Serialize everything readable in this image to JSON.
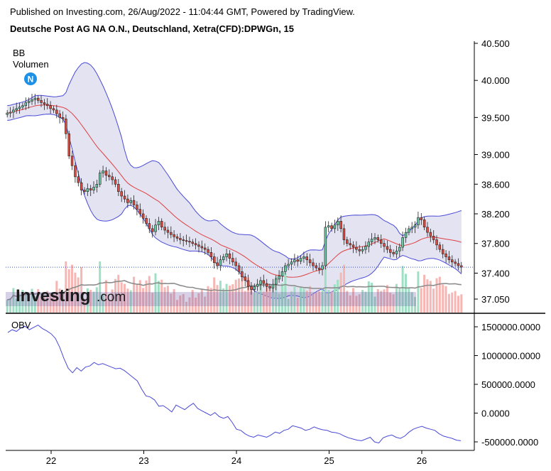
{
  "header": {
    "published": "Published on Investing.com, 26/Aug/2022 - 11:04:44 GMT, Powered by TradingView.",
    "title": "Deutsche Post AG NA O.N., Deutschland, Xetra(CFD):DPWGn, 15"
  },
  "legend": {
    "indicator_bb": "BB",
    "indicator_volume": "Volumen",
    "news_badge": "N",
    "obv_label": "OBV"
  },
  "watermark": {
    "brand": "Investing",
    "suffix": ".com"
  },
  "colors": {
    "bull": "#67c9a0",
    "bear": "#e04a3f",
    "bb_band": "#4a4ad8",
    "bb_fill": "#dcdcef",
    "bb_mid": "#e04040",
    "obv_line": "#4a4ad8",
    "vol_bull": "#9fe0c4",
    "vol_bear": "#f6b7b4",
    "vol_ma": "#8c8c8c",
    "last_price_line": "#3355cc",
    "news_badge": "#1e90e6"
  },
  "chart_data": [
    {
      "type": "candlestick",
      "name": "price",
      "title": "Deutsche Post AG NA O.N., Deutschland, Xetra(CFD):DPWGn, 15",
      "x_ticks": [
        "22",
        "23",
        "24",
        "25",
        "26"
      ],
      "y_ticks": [
        "40.500",
        "40.000",
        "39.500",
        "39.000",
        "38.600",
        "38.200",
        "37.800",
        "37.400",
        "37.050"
      ],
      "ylim": [
        36.9,
        40.55
      ],
      "last_price": 37.48,
      "close": [
        39.56,
        39.57,
        39.6,
        39.62,
        39.64,
        39.66,
        39.7,
        39.72,
        39.74,
        39.76,
        39.73,
        39.7,
        39.68,
        39.66,
        39.62,
        39.6,
        39.55,
        39.5,
        39.48,
        39.28,
        38.98,
        38.85,
        38.7,
        38.62,
        38.52,
        38.5,
        38.54,
        38.52,
        38.56,
        38.6,
        38.75,
        38.78,
        38.72,
        38.7,
        38.66,
        38.6,
        38.5,
        38.44,
        38.4,
        38.35,
        38.38,
        38.32,
        38.26,
        38.2,
        38.14,
        38.07,
        38.0,
        37.96,
        38.05,
        38.1,
        38.02,
        37.98,
        37.95,
        37.92,
        37.89,
        37.87,
        37.85,
        37.84,
        37.83,
        37.82,
        37.8,
        37.78,
        37.76,
        37.74,
        37.72,
        37.68,
        37.62,
        37.54,
        37.5,
        37.58,
        37.62,
        37.66,
        37.6,
        37.55,
        37.5,
        37.42,
        37.35,
        37.3,
        37.22,
        37.18,
        37.22,
        37.25,
        37.3,
        37.26,
        37.22,
        37.2,
        37.25,
        37.32,
        37.36,
        37.42,
        37.5,
        37.52,
        37.55,
        37.58,
        37.56,
        37.6,
        37.62,
        37.58,
        37.54,
        37.5,
        37.47,
        37.45,
        37.5,
        38.02,
        38.04,
        38.0,
        38.05,
        38.1,
        38.0,
        37.85,
        37.8,
        37.78,
        37.75,
        37.72,
        37.7,
        37.72,
        37.76,
        37.82,
        37.86,
        37.88,
        37.85,
        37.8,
        37.76,
        37.72,
        37.68,
        37.66,
        37.7,
        37.75,
        37.88,
        37.95,
        38.0,
        38.02,
        38.05,
        38.15,
        38.12,
        38.02,
        37.95,
        37.9,
        37.85,
        37.78,
        37.72,
        37.66,
        37.62,
        37.58,
        37.55,
        37.53,
        37.5,
        37.48
      ]
    },
    {
      "type": "line",
      "name": "OBV",
      "title": "OBV",
      "x_ticks": [
        "22",
        "23",
        "24",
        "25",
        "26"
      ],
      "y_ticks": [
        "1500000.0000",
        "1000000.0000",
        "500000.0000",
        "0.0000",
        "-500000.0000"
      ],
      "ylim": [
        -600000,
        1620000
      ],
      "values": [
        1400000,
        1450000,
        1420000,
        1480000,
        1510000,
        1450000,
        1490000,
        1530000,
        1470000,
        1430000,
        1380000,
        1300000,
        1150000,
        950000,
        780000,
        700000,
        790000,
        730000,
        800000,
        820000,
        880000,
        840000,
        860000,
        830000,
        800000,
        770000,
        780000,
        740000,
        680000,
        620000,
        560000,
        420000,
        300000,
        280000,
        230000,
        120000,
        130000,
        80000,
        20000,
        140000,
        100000,
        60000,
        120000,
        170000,
        80000,
        40000,
        0,
        -40000,
        10000,
        -60000,
        -90000,
        -60000,
        -160000,
        -280000,
        -300000,
        -360000,
        -400000,
        -420000,
        -380000,
        -400000,
        -420000,
        -380000,
        -330000,
        -350000,
        -300000,
        -280000,
        -220000,
        -240000,
        -260000,
        -300000,
        -280000,
        -240000,
        -270000,
        -290000,
        -300000,
        -330000,
        -340000,
        -360000,
        -400000,
        -430000,
        -450000,
        -470000,
        -480000,
        -450000,
        -420000,
        -500000,
        -520000,
        -430000,
        -400000,
        -380000,
        -420000,
        -440000,
        -400000,
        -330000,
        -280000,
        -250000,
        -230000,
        -260000,
        -280000,
        -300000,
        -360000,
        -400000,
        -420000,
        -440000,
        -470000,
        -480000
      ]
    }
  ]
}
